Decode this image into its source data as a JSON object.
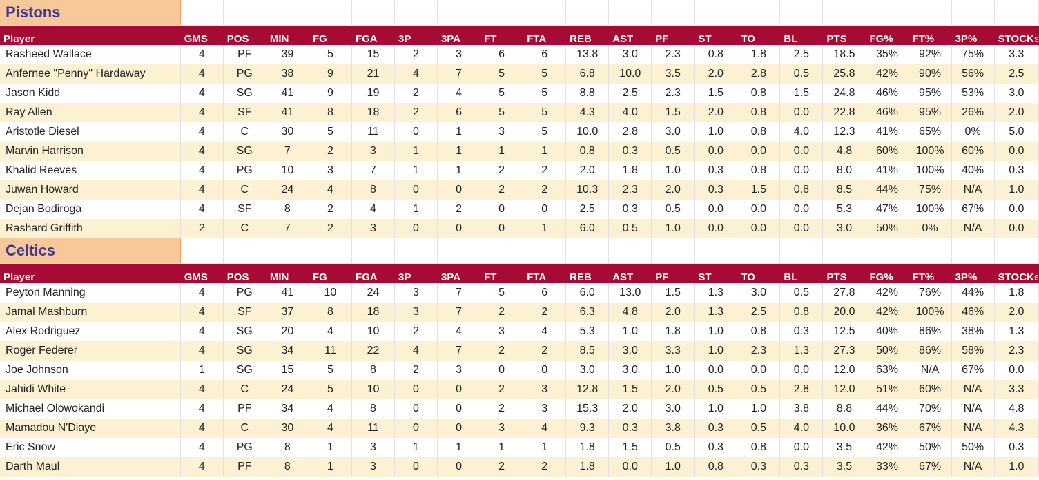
{
  "columns": [
    "Player",
    "GMS",
    "POS",
    "MIN",
    "FG",
    "FGA",
    "3P",
    "3PA",
    "FT",
    "FTA",
    "REB",
    "AST",
    "PF",
    "ST",
    "TO",
    "BL",
    "PTS",
    "FG%",
    "FT%",
    "3P%",
    "STOCKs"
  ],
  "teams": [
    {
      "name": "Pistons",
      "rows": [
        [
          "Rasheed Wallace",
          "4",
          "PF",
          "39",
          "5",
          "15",
          "2",
          "3",
          "6",
          "6",
          "13.8",
          "3.0",
          "2.3",
          "0.8",
          "1.8",
          "2.5",
          "18.5",
          "35%",
          "92%",
          "75%",
          "3.3"
        ],
        [
          "Anfernee \"Penny\" Hardaway",
          "4",
          "PG",
          "38",
          "9",
          "21",
          "4",
          "7",
          "5",
          "5",
          "6.8",
          "10.0",
          "3.5",
          "2.0",
          "2.8",
          "0.5",
          "25.8",
          "42%",
          "90%",
          "56%",
          "2.5"
        ],
        [
          "Jason Kidd",
          "4",
          "SG",
          "41",
          "9",
          "19",
          "2",
          "4",
          "5",
          "5",
          "8.8",
          "2.5",
          "2.3",
          "1.5",
          "0.8",
          "1.5",
          "24.8",
          "46%",
          "95%",
          "53%",
          "3.0"
        ],
        [
          "Ray Allen",
          "4",
          "SF",
          "41",
          "8",
          "18",
          "2",
          "6",
          "5",
          "5",
          "4.3",
          "4.0",
          "1.5",
          "2.0",
          "0.8",
          "0.0",
          "22.8",
          "46%",
          "95%",
          "26%",
          "2.0"
        ],
        [
          "Aristotle Diesel",
          "4",
          "C",
          "30",
          "5",
          "11",
          "0",
          "1",
          "3",
          "5",
          "10.0",
          "2.8",
          "3.0",
          "1.0",
          "0.8",
          "4.0",
          "12.3",
          "41%",
          "65%",
          "0%",
          "5.0"
        ],
        [
          "Marvin Harrison",
          "4",
          "SG",
          "7",
          "2",
          "3",
          "1",
          "1",
          "1",
          "1",
          "0.8",
          "0.3",
          "0.5",
          "0.0",
          "0.0",
          "0.0",
          "4.8",
          "60%",
          "100%",
          "60%",
          "0.0"
        ],
        [
          "Khalid Reeves",
          "4",
          "PG",
          "10",
          "3",
          "7",
          "1",
          "1",
          "2",
          "2",
          "2.0",
          "1.8",
          "1.0",
          "0.3",
          "0.8",
          "0.0",
          "8.0",
          "41%",
          "100%",
          "40%",
          "0.3"
        ],
        [
          "Juwan Howard",
          "4",
          "C",
          "24",
          "4",
          "8",
          "0",
          "0",
          "2",
          "2",
          "10.3",
          "2.3",
          "2.0",
          "0.3",
          "1.5",
          "0.8",
          "8.5",
          "44%",
          "75%",
          "N/A",
          "1.0"
        ],
        [
          "Dejan Bodiroga",
          "4",
          "SF",
          "8",
          "2",
          "4",
          "1",
          "2",
          "0",
          "0",
          "2.5",
          "0.3",
          "0.5",
          "0.0",
          "0.0",
          "0.0",
          "5.3",
          "47%",
          "100%",
          "67%",
          "0.0"
        ],
        [
          "Rashard Griffith",
          "2",
          "C",
          "7",
          "2",
          "3",
          "0",
          "0",
          "0",
          "1",
          "6.0",
          "0.5",
          "1.0",
          "0.0",
          "0.0",
          "0.0",
          "3.0",
          "50%",
          "0%",
          "N/A",
          "0.0"
        ]
      ]
    },
    {
      "name": "Celtics",
      "rows": [
        [
          "Peyton Manning",
          "4",
          "PG",
          "41",
          "10",
          "24",
          "3",
          "7",
          "5",
          "6",
          "6.0",
          "13.0",
          "1.5",
          "1.3",
          "3.0",
          "0.5",
          "27.8",
          "42%",
          "76%",
          "44%",
          "1.8"
        ],
        [
          "Jamal Mashburn",
          "4",
          "SF",
          "37",
          "8",
          "18",
          "3",
          "7",
          "2",
          "2",
          "6.3",
          "4.8",
          "2.0",
          "1.3",
          "2.5",
          "0.8",
          "20.0",
          "42%",
          "100%",
          "46%",
          "2.0"
        ],
        [
          "Alex Rodriguez",
          "4",
          "SG",
          "20",
          "4",
          "10",
          "2",
          "4",
          "3",
          "4",
          "5.3",
          "1.0",
          "1.8",
          "1.0",
          "0.8",
          "0.3",
          "12.5",
          "40%",
          "86%",
          "38%",
          "1.3"
        ],
        [
          "Roger Federer",
          "4",
          "SG",
          "34",
          "11",
          "22",
          "4",
          "7",
          "2",
          "2",
          "8.5",
          "3.0",
          "3.3",
          "1.0",
          "2.3",
          "1.3",
          "27.3",
          "50%",
          "86%",
          "58%",
          "2.3"
        ],
        [
          "Joe Johnson",
          "1",
          "SG",
          "15",
          "5",
          "8",
          "2",
          "3",
          "0",
          "0",
          "3.0",
          "3.0",
          "1.0",
          "0.0",
          "0.0",
          "0.0",
          "12.0",
          "63%",
          "N/A",
          "67%",
          "0.0"
        ],
        [
          "Jahidi White",
          "4",
          "C",
          "24",
          "5",
          "10",
          "0",
          "0",
          "2",
          "3",
          "12.8",
          "1.5",
          "2.0",
          "0.5",
          "0.5",
          "2.8",
          "12.0",
          "51%",
          "60%",
          "N/A",
          "3.3"
        ],
        [
          "Michael Olowokandi",
          "4",
          "PF",
          "34",
          "4",
          "8",
          "0",
          "0",
          "2",
          "3",
          "15.3",
          "2.0",
          "3.0",
          "1.0",
          "1.0",
          "3.8",
          "8.8",
          "44%",
          "70%",
          "N/A",
          "4.8"
        ],
        [
          "Mamadou N'Diaye",
          "4",
          "C",
          "30",
          "4",
          "11",
          "0",
          "0",
          "3",
          "4",
          "9.3",
          "0.3",
          "3.8",
          "0.3",
          "0.5",
          "4.0",
          "10.0",
          "36%",
          "67%",
          "N/A",
          "4.3"
        ],
        [
          "Eric Snow",
          "4",
          "PG",
          "8",
          "1",
          "3",
          "1",
          "1",
          "1",
          "1",
          "1.8",
          "1.5",
          "0.5",
          "0.3",
          "0.8",
          "0.0",
          "3.5",
          "42%",
          "50%",
          "50%",
          "0.3"
        ],
        [
          "Darth Maul",
          "4",
          "PF",
          "8",
          "1",
          "3",
          "0",
          "0",
          "2",
          "2",
          "1.8",
          "0.0",
          "1.0",
          "0.8",
          "0.3",
          "0.3",
          "3.5",
          "33%",
          "67%",
          "N/A",
          "1.0"
        ]
      ]
    }
  ]
}
